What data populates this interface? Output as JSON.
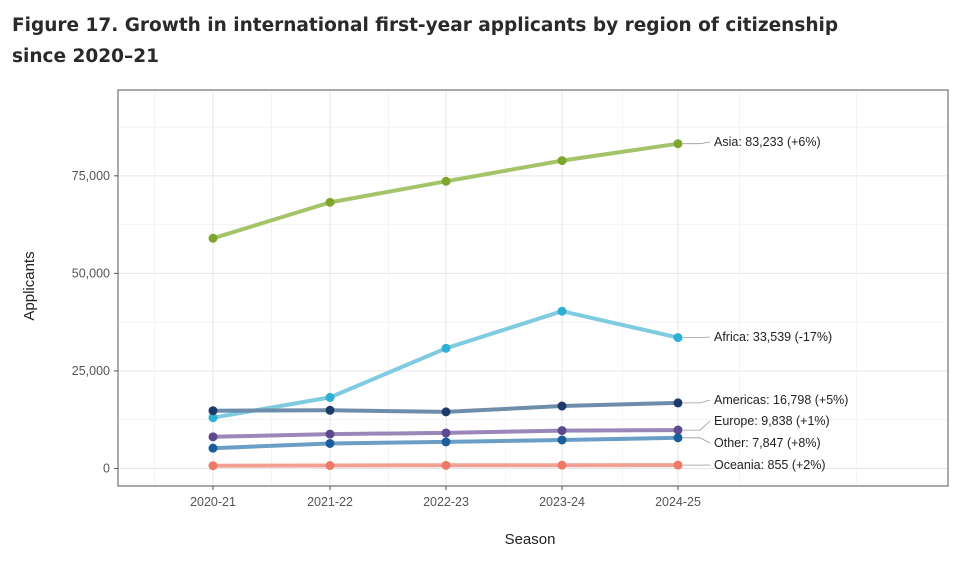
{
  "figure": {
    "title_line1": "Figure 17. Growth in international first-year applicants by region of citizenship",
    "title_line2": "since 2020–21"
  },
  "chart_data": {
    "type": "line",
    "title": "Figure 17. Growth in international first-year applicants by region of citizenship since 2020–21",
    "xlabel": "Season",
    "ylabel": "Applicants",
    "categories": [
      "2020-21",
      "2021-22",
      "2022-23",
      "2023-24",
      "2024-25"
    ],
    "ylim": [
      -4500,
      97000
    ],
    "yticks": [
      0,
      25000,
      50000,
      75000
    ],
    "ytick_labels": [
      "0",
      "25,000",
      "50,000",
      "75,000"
    ],
    "grid": true,
    "series": [
      {
        "name": "Asia",
        "label": "Asia: 83,233 (+6%)",
        "values": [
          59000,
          68200,
          73600,
          78900,
          83233
        ],
        "line_color": "#a5c46a",
        "point_color": "#7ea52e"
      },
      {
        "name": "Africa",
        "label": "Africa: 33,539 (-17%)",
        "values": [
          13000,
          18200,
          30800,
          40300,
          33539
        ],
        "line_color": "#7fcbe0",
        "point_color": "#2db0d4"
      },
      {
        "name": "Americas",
        "label": "Americas: 16,798 (+5%)",
        "values": [
          14800,
          14900,
          14500,
          16000,
          16798
        ],
        "line_color": "#6d8eab",
        "point_color": "#1e3a68"
      },
      {
        "name": "Europe",
        "label": "Europe: 9,838 (+1%)",
        "values": [
          8100,
          8800,
          9100,
          9700,
          9838
        ],
        "line_color": "#9a86b8",
        "point_color": "#5d4a8c"
      },
      {
        "name": "Other",
        "label": "Other: 7,847 (+8%)",
        "values": [
          5200,
          6400,
          6800,
          7300,
          7847
        ],
        "line_color": "#6b9ec6",
        "point_color": "#1a5f9c"
      },
      {
        "name": "Oceania",
        "label": "Oceania: 855 (+2%)",
        "values": [
          700,
          750,
          800,
          840,
          855
        ],
        "line_color": "#f2a093",
        "point_color": "#ec7a67"
      }
    ]
  }
}
